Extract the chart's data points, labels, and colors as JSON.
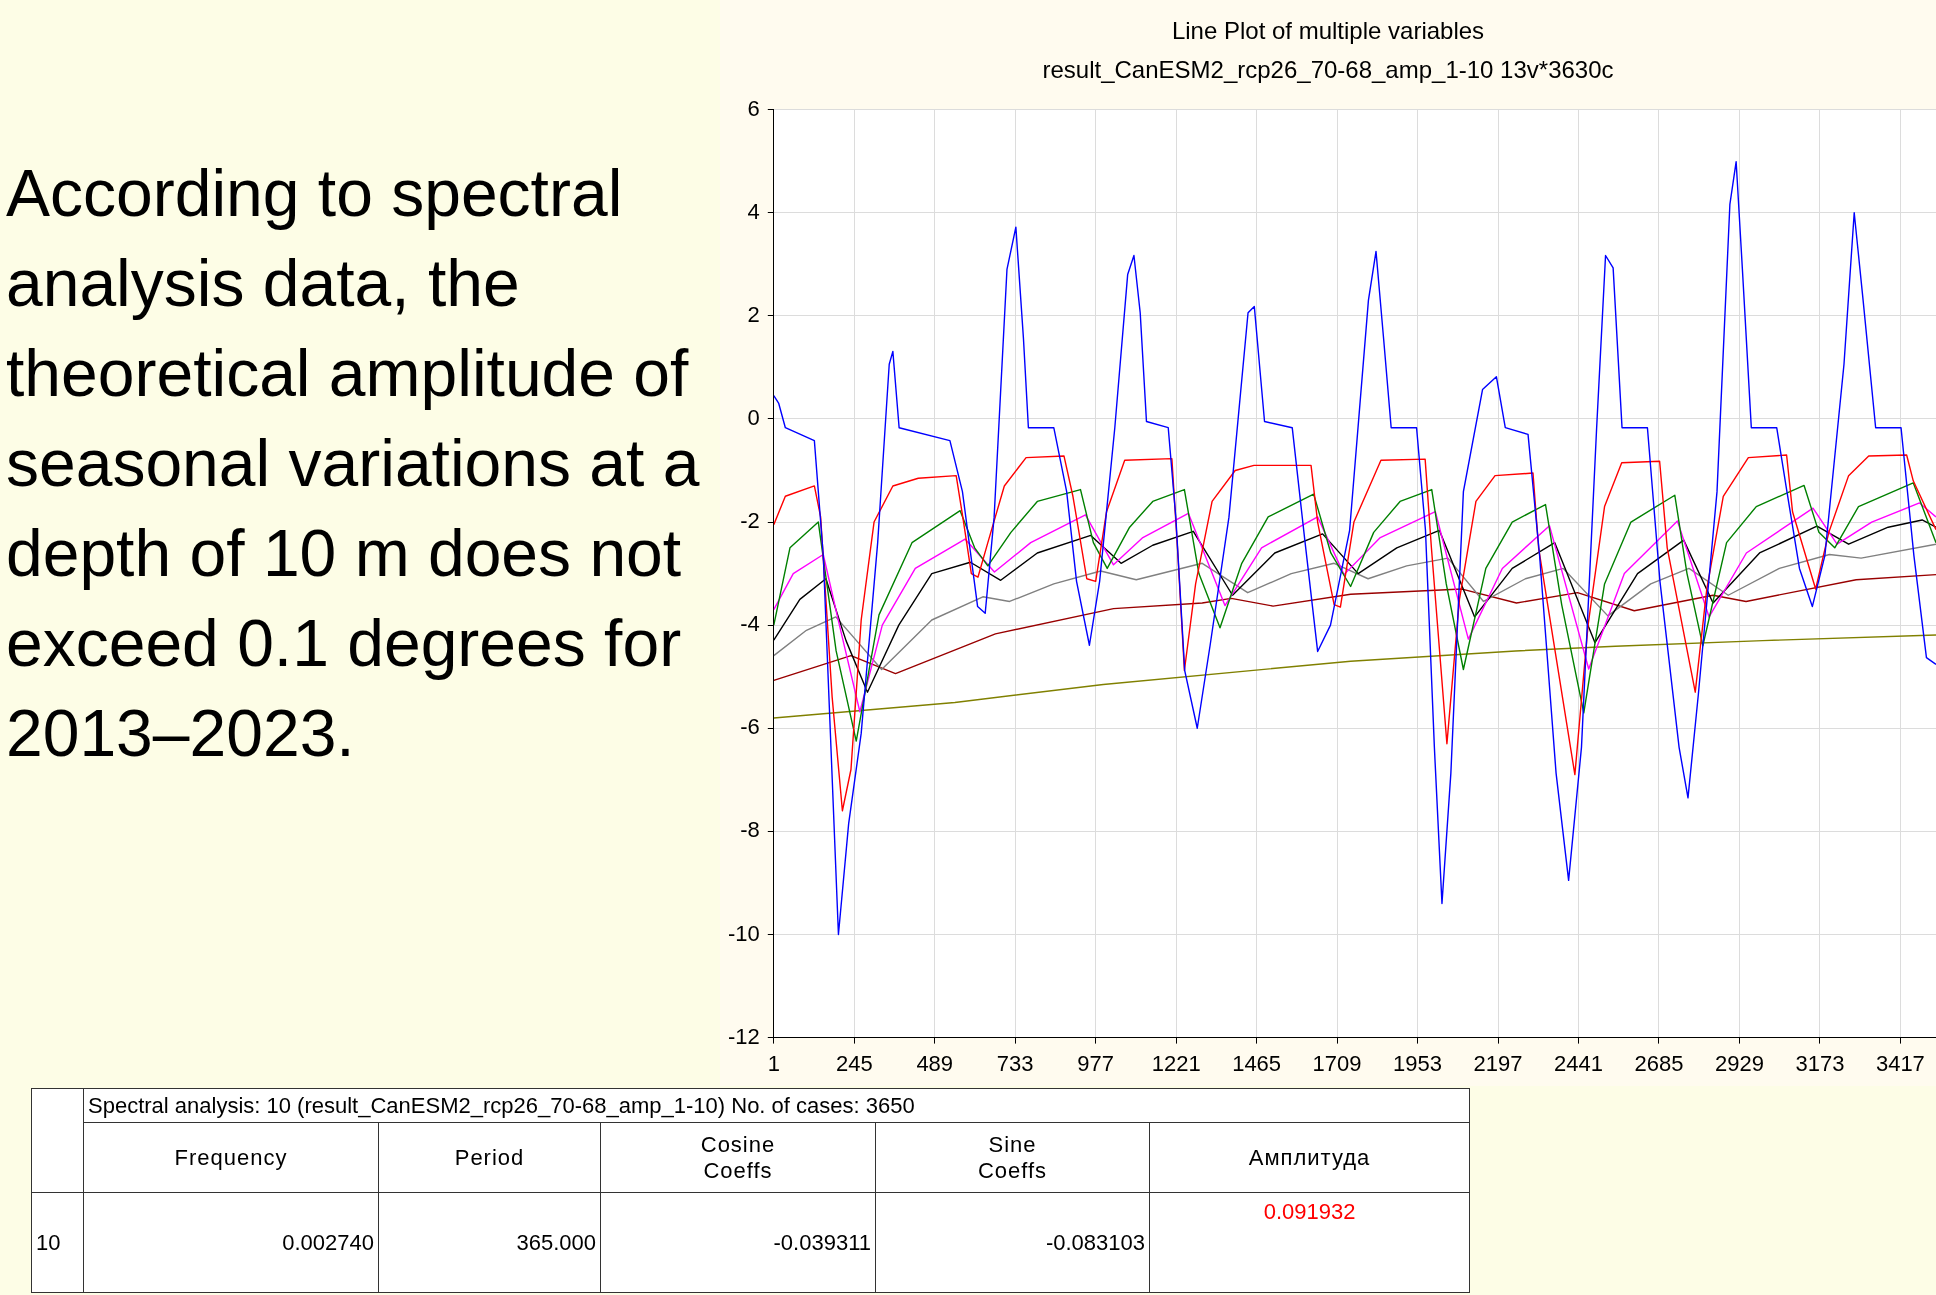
{
  "chart_data": {
    "type": "line",
    "title": "Line Plot of multiple variables",
    "subtitle": "result_CanESM2_rcp26_70-68_amp_1-10 13v*3630c",
    "xlim": [
      1,
      3525
    ],
    "xticks": [
      1,
      245,
      489,
      733,
      977,
      1221,
      1465,
      1709,
      1953,
      2197,
      2441,
      2685,
      2929,
      3173,
      3417
    ],
    "ylim": [
      -12,
      6
    ],
    "yticks": [
      -12,
      -10,
      -8,
      -6,
      -4,
      -2,
      0,
      2,
      4,
      6
    ],
    "grid": true,
    "legend": false,
    "marker": "none",
    "line_style": "solid",
    "annotations": [
      "According to spectral analysis data, the theoretical amplitude of seasonal variations at a depth of 10 m does not exceed 0.1 degrees for 2013–2023.",
      "Spectral analysis: 10 (result_CanESM2_rcp26_70-68_amp_1-10) No. of cases: 3650",
      "Frequency",
      "Period",
      "Cosine Coeffs",
      "Sine Coeffs",
      "Амплитуда",
      "10",
      "0.002740",
      "365.000",
      "-0.039311",
      "-0.083103",
      "0.091932"
    ],
    "series": [
      {
        "color": "#808000",
        "x": [
          1,
          550,
          1000,
          1750,
          2250,
          2553,
          3000,
          3525
        ],
        "values": [
          -5.8,
          -5.5,
          -5.15,
          -4.7,
          -4.5,
          -4.41,
          -4.3,
          -4.19
        ]
      },
      {
        "color": "#990000",
        "x": [
          1,
          235,
          370,
          673,
          1031,
          1300,
          1388,
          1515,
          1750,
          2088,
          2253,
          2438,
          2610,
          2849,
          2949,
          3283,
          3525
        ],
        "values": [
          -5.07,
          -4.59,
          -4.94,
          -4.17,
          -3.68,
          -3.57,
          -3.48,
          -3.63,
          -3.4,
          -3.3,
          -3.57,
          -3.37,
          -3.72,
          -3.42,
          -3.54,
          -3.12,
          -3.02
        ]
      },
      {
        "color": "#808080",
        "x": [
          1,
          100,
          189,
          328,
          480,
          635,
          716,
          850,
          992,
          1100,
          1300,
          1438,
          1570,
          1700,
          1803,
          1920,
          2045,
          2153,
          2280,
          2395,
          2530,
          2660,
          2776,
          2895,
          3050,
          3202,
          3298,
          3525
        ],
        "values": [
          -4.59,
          -4.1,
          -3.84,
          -4.86,
          -3.9,
          -3.45,
          -3.54,
          -3.2,
          -2.95,
          -3.12,
          -2.8,
          -3.37,
          -3.0,
          -2.8,
          -3.1,
          -2.85,
          -2.7,
          -3.54,
          -3.1,
          -2.9,
          -3.82,
          -3.2,
          -2.9,
          -3.42,
          -2.9,
          -2.63,
          -2.7,
          -2.43
        ]
      },
      {
        "color": "#000000",
        "x": [
          1,
          80,
          159,
          220,
          285,
          380,
          480,
          597,
          689,
          800,
          962,
          1054,
          1150,
          1273,
          1392,
          1520,
          1665,
          1773,
          1890,
          2019,
          2126,
          2240,
          2369,
          2491,
          2620,
          2760,
          2849,
          2990,
          3164,
          3260,
          3380,
          3483,
          3525
        ],
        "values": [
          -4.29,
          -3.5,
          -3.1,
          -4.3,
          -5.3,
          -4.0,
          -3.0,
          -2.78,
          -3.13,
          -2.6,
          -2.26,
          -2.8,
          -2.45,
          -2.18,
          -3.42,
          -2.6,
          -2.23,
          -3.0,
          -2.5,
          -2.16,
          -3.84,
          -2.9,
          -2.4,
          -4.34,
          -3.0,
          -2.35,
          -3.57,
          -2.6,
          -2.08,
          -2.43,
          -2.1,
          -1.96,
          -2.1
        ]
      },
      {
        "color": "#ff00ff",
        "x": [
          1,
          60,
          151,
          200,
          262,
          330,
          430,
          581,
          670,
          780,
          946,
          1031,
          1120,
          1258,
          1369,
          1480,
          1650,
          1730,
          1840,
          2007,
          2107,
          2210,
          2353,
          2472,
          2580,
          2741,
          2837,
          2950,
          3152,
          3225,
          3330,
          3475,
          3525
        ],
        "values": [
          -3.7,
          -3.0,
          -2.63,
          -4.0,
          -5.68,
          -4.0,
          -2.9,
          -2.33,
          -2.97,
          -2.4,
          -1.86,
          -2.83,
          -2.3,
          -1.83,
          -3.62,
          -2.5,
          -1.9,
          -3.02,
          -2.3,
          -1.8,
          -4.27,
          -2.9,
          -2.07,
          -4.85,
          -3.0,
          -1.98,
          -3.84,
          -2.6,
          -1.73,
          -2.43,
          -2.0,
          -1.63,
          -1.9
        ]
      },
      {
        "color": "#008000",
        "x": [
          1,
          50,
          136,
          190,
          251,
          320,
          420,
          566,
          610,
          650,
          720,
          800,
          931,
          970,
          1012,
          1080,
          1150,
          1246,
          1290,
          1354,
          1420,
          1500,
          1638,
          1690,
          1750,
          1820,
          1900,
          1996,
          2040,
          2092,
          2160,
          2240,
          2341,
          2390,
          2457,
          2520,
          2600,
          2733,
          2770,
          2818,
          2890,
          2980,
          3125,
          3170,
          3218,
          3290,
          3456,
          3525
        ],
        "values": [
          -4.0,
          -2.5,
          -2.0,
          -4.5,
          -6.25,
          -3.8,
          -2.4,
          -1.78,
          -2.5,
          -2.85,
          -2.2,
          -1.6,
          -1.37,
          -2.4,
          -2.9,
          -2.1,
          -1.6,
          -1.37,
          -3.0,
          -4.05,
          -2.8,
          -1.9,
          -1.46,
          -2.6,
          -3.25,
          -2.2,
          -1.6,
          -1.37,
          -3.2,
          -4.86,
          -2.9,
          -2.0,
          -1.66,
          -3.6,
          -5.7,
          -3.2,
          -2.0,
          -1.48,
          -3.0,
          -4.4,
          -2.4,
          -1.7,
          -1.29,
          -2.2,
          -2.5,
          -1.7,
          -1.24,
          -2.4
        ]
      },
      {
        "color": "#ff0000",
        "x": [
          1,
          36,
          124,
          143,
          178,
          209,
          235,
          266,
          305,
          362,
          439,
          554,
          574,
          600,
          620,
          650,
          700,
          766,
          881,
          908,
          950,
          977,
          1010,
          1065,
          1208,
          1225,
          1246,
          1280,
          1330,
          1400,
          1457,
          1630,
          1650,
          1700,
          1719,
          1760,
          1842,
          1976,
          1995,
          2042,
          2080,
          2130,
          2188,
          2303,
          2320,
          2430,
          2470,
          2520,
          2572,
          2687,
          2710,
          2795,
          2830,
          2880,
          2956,
          3072,
          3090,
          3160,
          3200,
          3260,
          3321,
          3436,
          3456,
          3525
        ],
        "values": [
          -2.05,
          -1.5,
          -1.3,
          -1.9,
          -5.4,
          -7.6,
          -6.8,
          -3.9,
          -2.0,
          -1.3,
          -1.15,
          -1.1,
          -1.9,
          -3.0,
          -3.07,
          -2.4,
          -1.3,
          -0.75,
          -0.72,
          -1.5,
          -3.1,
          -3.15,
          -1.8,
          -0.8,
          -0.77,
          -2.5,
          -4.88,
          -3.2,
          -1.6,
          -1.0,
          -0.9,
          -0.9,
          -2.0,
          -3.6,
          -3.65,
          -2.0,
          -0.8,
          -0.78,
          -2.5,
          -6.3,
          -3.5,
          -1.6,
          -1.1,
          -1.05,
          -2.5,
          -6.9,
          -4.0,
          -1.7,
          -0.85,
          -0.82,
          -2.5,
          -5.3,
          -3.3,
          -1.5,
          -0.75,
          -0.7,
          -1.8,
          -3.3,
          -2.2,
          -1.1,
          -0.72,
          -0.7,
          -1.2,
          -2.15
        ]
      },
      {
        "color": "#0000ff",
        "x": [
          1,
          16,
          36,
          124,
          151,
          197,
          228,
          266,
          316,
          351,
          362,
          381,
          535,
          573,
          619,
          642,
          669,
          708,
          735,
          758,
          773,
          850,
          889,
          919,
          958,
          989,
          1035,
          1074,
          1093,
          1112,
          1131,
          1197,
          1220,
          1247,
          1285,
          1324,
          1381,
          1439,
          1458,
          1489,
          1573,
          1612,
          1650,
          1689,
          1747,
          1804,
          1827,
          1850,
          1873,
          1950,
          1977,
          2004,
          2027,
          2054,
          2092,
          2150,
          2192,
          2219,
          2288,
          2323,
          2373,
          2411,
          2450,
          2496,
          2523,
          2546,
          2573,
          2650,
          2688,
          2746,
          2773,
          2804,
          2861,
          2900,
          2919,
          2938,
          2965,
          3042,
          3073,
          3111,
          3150,
          3188,
          3246,
          3277,
          3304,
          3342,
          3419,
          3458,
          3496,
          3525
        ],
        "values": [
          0.45,
          0.3,
          -0.17,
          -0.42,
          -2.65,
          -10.0,
          -7.85,
          -6.1,
          -2.4,
          1.06,
          1.31,
          -0.17,
          -0.42,
          -1.41,
          -3.64,
          -3.77,
          -1.91,
          2.9,
          3.72,
          1.56,
          -0.17,
          -0.17,
          -1.41,
          -3.15,
          -4.39,
          -3.15,
          -0.17,
          2.8,
          3.17,
          2.06,
          -0.05,
          -0.17,
          -1.91,
          -4.88,
          -6.0,
          -4.39,
          -1.91,
          2.06,
          2.18,
          -0.05,
          -0.17,
          -2.4,
          -4.51,
          -4.0,
          -2.16,
          2.3,
          3.25,
          1.56,
          -0.17,
          -0.17,
          -2.16,
          -6.37,
          -9.4,
          -6.87,
          -1.41,
          0.57,
          0.82,
          -0.17,
          -0.3,
          -2.65,
          -6.87,
          -8.95,
          -6.37,
          -0.17,
          3.17,
          2.93,
          -0.17,
          -0.17,
          -3.15,
          -6.37,
          -7.35,
          -5.37,
          -1.41,
          4.16,
          4.99,
          2.9,
          -0.17,
          -0.17,
          -1.41,
          -2.9,
          -3.64,
          -2.65,
          1.06,
          4.0,
          2.3,
          -0.17,
          -0.17,
          -2.65,
          -4.63,
          -4.76
        ]
      }
    ]
  }
}
